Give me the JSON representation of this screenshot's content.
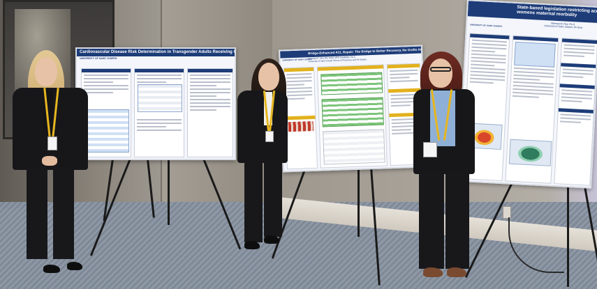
{
  "photo": {
    "description_free": true
  },
  "posters": [
    {
      "title": "Cardiovascular Disease Risk Determination in Transgender Adults Receiving Gender-Affirming Hormone Therapy",
      "university": "UNIVERSITY OF SAINT JOSEPH"
    },
    {
      "title": "Bridge-Enhanced ACL Repair: The Bridge to Better Recovery, No Grafts Attached",
      "authors": "Courtney E. Olin, RN, MSN, MPH Candidate, PA-C",
      "affiliation": "University of Saint Joseph School of Pharmacy and PA Studies",
      "university": "UNIVERSITY OF SAINT JOSEPH"
    },
    {
      "title": "State-based legislation restricting access",
      "title2": "womens maternal morbidity",
      "authors": "Marissa M. Roy, PA-S",
      "affiliation": "University of Saint Joseph, PA Stud",
      "university": "UNIVERSITY OF SAINT JOSEPH"
    }
  ],
  "colors": {
    "poster_blue": "#1d3c78",
    "poster_gold": "#e2b11c",
    "lanyard_yellow": "#e6b620"
  }
}
